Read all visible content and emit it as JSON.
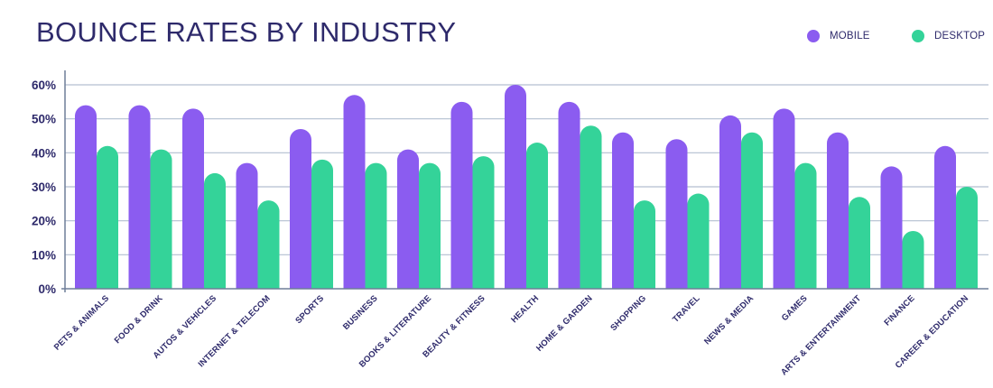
{
  "chart_data": {
    "type": "bar",
    "title": "BOUNCE RATES BY INDUSTRY",
    "xlabel": "",
    "ylabel": "",
    "ylim": [
      0,
      60
    ],
    "yticks": [
      "0%",
      "10%",
      "20%",
      "30%",
      "40%",
      "50%",
      "60%"
    ],
    "ytick_values": [
      0,
      10,
      20,
      30,
      40,
      50,
      60
    ],
    "grid": true,
    "legend_position": "top-right",
    "categories": [
      "PETS & ANIMALS",
      "FOOD & DRINK",
      "AUTOS & VEHICLES",
      "INTERNET & TELECOM",
      "SPORTS",
      "BUSINESS",
      "BOOKS & LITERATURE",
      "BEAUTY & FITNESS",
      "HEALTH",
      "HOME & GARDEN",
      "SHOPPING",
      "TRAVEL",
      "NEWS & MEDIA",
      "GAMES",
      "ARTS & ENTERTAINMENT",
      "FINANCE",
      "CAREER & EDUCATION"
    ],
    "series": [
      {
        "name": "MOBILE",
        "color": "#8b5cf0",
        "values": [
          54,
          54,
          53,
          37,
          47,
          57,
          41,
          55,
          60,
          55,
          46,
          44,
          51,
          53,
          46,
          36,
          42
        ]
      },
      {
        "name": "DESKTOP",
        "color": "#34d399",
        "values": [
          42,
          41,
          34,
          26,
          38,
          37,
          37,
          39,
          43,
          48,
          26,
          28,
          46,
          37,
          27,
          17,
          30
        ]
      }
    ]
  }
}
